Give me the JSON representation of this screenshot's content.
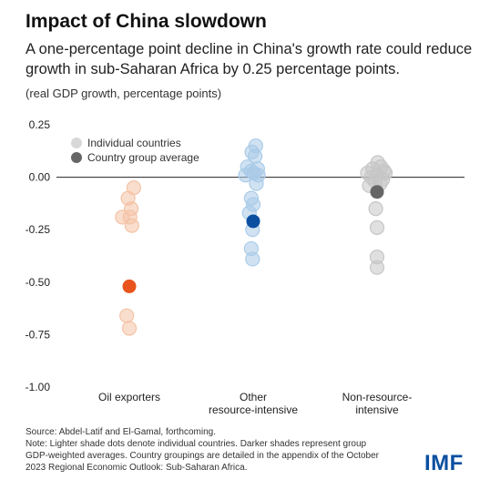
{
  "title": "Impact of China slowdown",
  "subtitle": "A one-percentage point decline in China's growth rate could reduce growth in sub-Saharan Africa by 0.25 percentage points.",
  "unit_label": "(real GDP growth, percentage points)",
  "footnote": {
    "source": "Source: Abdel-Latif and El-Gamal, forthcoming.",
    "note": "Note: Lighter shade dots denote individual countries. Darker shades represent group GDP-weighted averages. Country groupings are detailed in the appendix of the October 2023 Regional Economic Outlook: Sub-Saharan Africa."
  },
  "logo": "IMF",
  "chart_data": {
    "type": "scatter",
    "title": "Impact of China slowdown",
    "ylabel": "(real GDP growth, percentage points)",
    "ylim": [
      -1.0,
      0.25
    ],
    "yticks": [
      "0.25",
      "0.00",
      "-0.25",
      "-0.50",
      "-0.75",
      "-1.00"
    ],
    "ytick_values": [
      0.25,
      0.0,
      -0.25,
      -0.5,
      -0.75,
      -1.0
    ],
    "legend": {
      "position": "top-left",
      "items": [
        {
          "label": "Individual countries",
          "color": "#c8c8c8"
        },
        {
          "label": "Country group average",
          "color": "#666666"
        }
      ]
    },
    "categories": [
      {
        "label_lines": [
          "Oil exporters"
        ],
        "color_light": "#f4c3a6",
        "color_dark": "#e8541c",
        "countries": [
          -0.05,
          -0.1,
          -0.15,
          -0.19,
          -0.19,
          -0.23,
          -0.66,
          -0.72
        ],
        "offsets": [
          0.35,
          -0.1,
          0.15,
          -0.55,
          0.05,
          0.2,
          -0.2,
          0.0
        ],
        "average": -0.52
      },
      {
        "label_lines": [
          "Other",
          "resource-intensive"
        ],
        "color_light": "#a9cbe8",
        "color_dark": "#0b4fa0",
        "countries": [
          0.15,
          0.12,
          0.1,
          0.05,
          0.04,
          0.03,
          0.02,
          0.01,
          0.01,
          -0.03,
          -0.1,
          -0.13,
          -0.17,
          -0.25,
          -0.34,
          -0.39
        ],
        "offsets": [
          0.2,
          -0.1,
          0.15,
          -0.45,
          0.35,
          -0.15,
          0.05,
          -0.6,
          0.4,
          0.25,
          -0.15,
          0.0,
          -0.3,
          -0.05,
          -0.15,
          -0.05
        ],
        "average": -0.21
      },
      {
        "label_lines": [
          "Non-resource-",
          "intensive"
        ],
        "color_light": "#c6c6c6",
        "color_dark": "#666666",
        "countries": [
          0.07,
          0.05,
          0.04,
          0.03,
          0.02,
          0.02,
          0.01,
          0.0,
          -0.01,
          -0.02,
          -0.03,
          -0.04,
          -0.15,
          -0.24,
          -0.38,
          -0.43
        ],
        "offsets": [
          0.05,
          0.3,
          -0.35,
          0.55,
          -0.75,
          0.65,
          0.0,
          -0.45,
          0.45,
          -0.15,
          0.25,
          -0.6,
          -0.1,
          0.0,
          0.0,
          0.0
        ],
        "average": -0.07
      }
    ]
  }
}
